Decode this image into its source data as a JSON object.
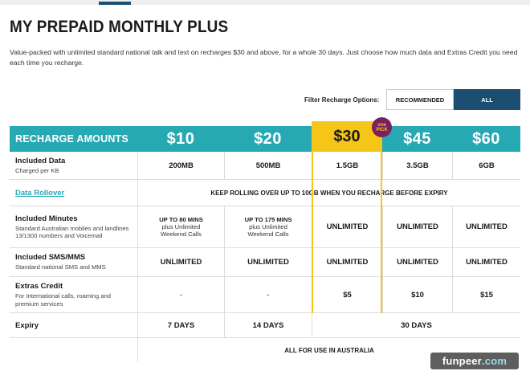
{
  "page": {
    "title": "MY PREPAID MONTHLY PLUS",
    "description": "Value-packed with unlimited standard national talk and text on recharges $30 and above, for a whole 30 days. Just choose how much data and Extras Credit you need each time you recharge."
  },
  "filter": {
    "label": "Filter Recharge Options:",
    "options": [
      {
        "label": "RECOMMENDED",
        "selected": false
      },
      {
        "label": "ALL",
        "selected": true
      }
    ]
  },
  "table": {
    "header": {
      "label": "RECHARGE AMOUNTS",
      "prices": [
        "$10",
        "$20",
        "$30",
        "$45",
        "$60"
      ],
      "badge_line1": "one",
      "badge_line2": "PICK",
      "highlighted_index": 2
    },
    "rows": {
      "data": {
        "title": "Included Data",
        "subtitle": "Charged per KB",
        "values": [
          "200MB",
          "500MB",
          "1.5GB",
          "3.5GB",
          "6GB"
        ]
      },
      "rollover": {
        "title": "Data Rollover",
        "text": "KEEP ROLLING OVER UP TO 10GB WHEN YOU RECHARGE BEFORE EXPIRY"
      },
      "minutes": {
        "title": "Included Minutes",
        "subtitle": "Standard Australian mobiles and landlines 13/1300 numbers and Voicemail",
        "col1_top": "UP TO 80 MINS",
        "col1_bottom": "plus Unlimited Weekend Calls",
        "col2_top": "UP TO 175 MINS",
        "col2_bottom": "plus Unlimited Weekend Calls",
        "values": [
          "UNLIMITED",
          "UNLIMITED",
          "UNLIMITED"
        ]
      },
      "sms": {
        "title": "Included SMS/MMS",
        "subtitle": "Standard national SMS and MMS",
        "values": [
          "UNLIMITED",
          "UNLIMITED",
          "UNLIMITED",
          "UNLIMITED",
          "UNLIMITED"
        ]
      },
      "extras": {
        "title": "Extras Credit",
        "subtitle": "For International calls, roaming and premium services",
        "values": [
          "-",
          "-",
          "$5",
          "$10",
          "$15"
        ]
      },
      "expiry": {
        "title": "Expiry",
        "values": [
          "7 DAYS",
          "14 DAYS",
          "30 DAYS"
        ]
      },
      "footer": {
        "text": "ALL FOR USE IN AUSTRALIA"
      }
    }
  },
  "watermark": {
    "main": "funpeer",
    "suffix": ".com"
  },
  "colors": {
    "teal": "#27a9b4",
    "navy": "#1b4e70",
    "yellow": "#f5c518",
    "badge": "#7b1f63"
  }
}
